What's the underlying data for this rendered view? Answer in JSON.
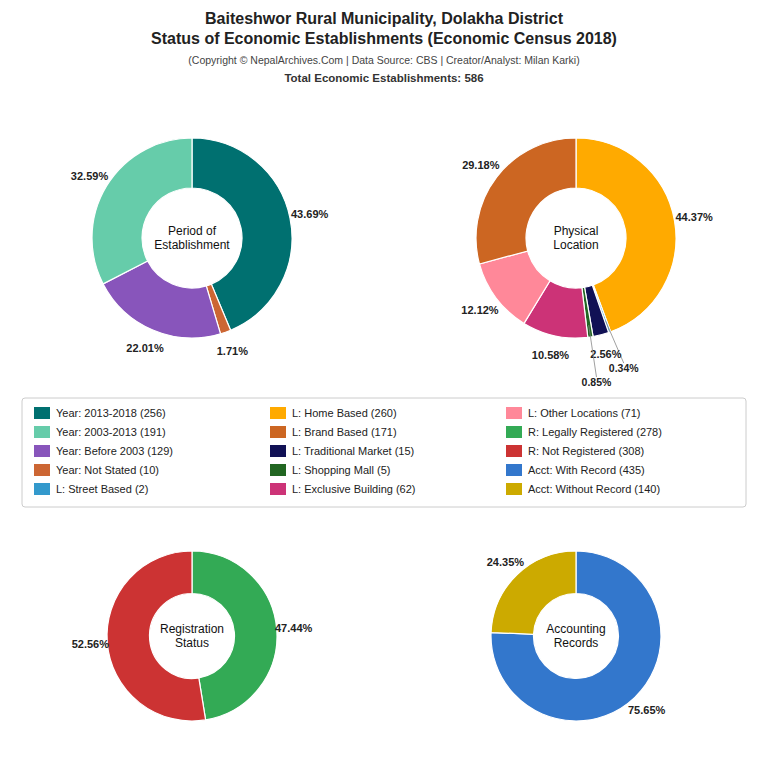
{
  "title": "Baiteshwor Rural Municipality, Dolakha District\nStatus of Economic Establishments (Economic Census 2018)",
  "subtitle": "(Copyright © NepalArchives.Com | Data Source: CBS | Creator/Analyst: Milan Karki)",
  "annotations": [
    "Total Economic Establishments: 586"
  ],
  "chart_data": [
    {
      "type": "pie",
      "title": "Period of\nEstablishment",
      "values": [
        43.69,
        1.71,
        22.01,
        32.59
      ],
      "value_labels": [
        "43.69%",
        "1.71%",
        "22.01%",
        "32.59%"
      ],
      "colors": [
        "#007070",
        "#cc6633",
        "#8855bb",
        "#66ccaa"
      ],
      "data_labels": true
    },
    {
      "type": "pie",
      "title": "Physical\nLocation",
      "values": [
        44.37,
        0.34,
        2.56,
        0.85,
        10.58,
        12.12,
        29.18
      ],
      "value_labels": [
        "44.37%",
        "0.34%",
        "2.56%",
        "0.85%",
        "10.58%",
        "12.12%",
        "29.18%"
      ],
      "colors": [
        "#ffaa00",
        "#3399cc",
        "#111155",
        "#226622",
        "#cc3377",
        "#ff8899",
        "#cc6622"
      ],
      "data_labels": true
    },
    {
      "type": "pie",
      "title": "Registration\nStatus",
      "values": [
        47.44,
        52.56
      ],
      "value_labels": [
        "47.44%",
        "52.56%"
      ],
      "colors": [
        "#33aa55",
        "#cc3333"
      ],
      "data_labels": true
    },
    {
      "type": "pie",
      "title": "Accounting\nRecords",
      "values": [
        75.65,
        24.35
      ],
      "value_labels": [
        "75.65%",
        "24.35%"
      ],
      "colors": [
        "#3377cc",
        "#ccaa00"
      ],
      "data_labels": true
    }
  ],
  "legend_entries": [
    {
      "name": "Year: 2013-2018 (256)",
      "color": "#007070"
    },
    {
      "name": "Year: 2003-2013 (191)",
      "color": "#66ccaa"
    },
    {
      "name": "Year: Before 2003 (129)",
      "color": "#8855bb"
    },
    {
      "name": "Year: Not Stated (10)",
      "color": "#cc6633"
    },
    {
      "name": "L: Street Based (2)",
      "color": "#3399cc"
    },
    {
      "name": "L: Home Based (260)",
      "color": "#ffaa00"
    },
    {
      "name": "L: Brand Based (171)",
      "color": "#cc6622"
    },
    {
      "name": "L: Traditional Market (15)",
      "color": "#111155"
    },
    {
      "name": "L: Shopping Mall (5)",
      "color": "#226622"
    },
    {
      "name": "L: Exclusive Building (62)",
      "color": "#cc3377"
    },
    {
      "name": "L: Other Locations (71)",
      "color": "#ff8899"
    },
    {
      "name": "R: Legally Registered (278)",
      "color": "#33aa55"
    },
    {
      "name": "R: Not Registered (308)",
      "color": "#cc3333"
    },
    {
      "name": "Acct: With Record (435)",
      "color": "#3377cc"
    },
    {
      "name": "Acct: Without Record (140)",
      "color": "#ccaa00"
    }
  ]
}
